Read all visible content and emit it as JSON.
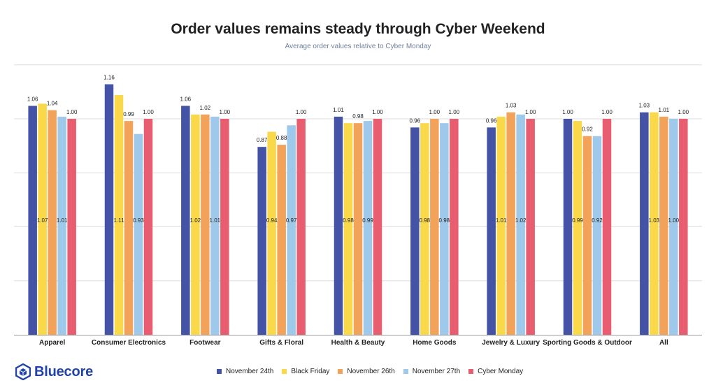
{
  "title": "Order values remains steady through Cyber Weekend",
  "subtitle": "Average order values relative to Cyber Monday",
  "brand": {
    "name": "Bluecore",
    "icon": "bluecore-hexagon-cube-icon",
    "color": "#2142a8"
  },
  "legend": [
    {
      "name": "November 24th",
      "color": "#4453a6"
    },
    {
      "name": "Black Friday",
      "color": "#f9d94a"
    },
    {
      "name": "November 26th",
      "color": "#f3a25a"
    },
    {
      "name": "November 27th",
      "color": "#9ec9eb"
    },
    {
      "name": "Cyber Monday",
      "color": "#e85d6f"
    }
  ],
  "chart_data": {
    "type": "bar",
    "title": "Order values remains steady through Cyber Weekend",
    "subtitle": "Average order values relative to Cyber Monday",
    "categories": [
      "Apparel",
      "Consumer Electronics",
      "Footwear",
      "Gifts & Floral",
      "Health & Beauty",
      "Home Goods",
      "Jewelry & Luxury",
      "Sporting Goods & Outdoor",
      "All"
    ],
    "series": [
      {
        "name": "November 24th",
        "color": "#4453a6",
        "values": [
          1.06,
          1.16,
          1.06,
          0.87,
          1.01,
          0.96,
          0.96,
          1.0,
          1.03
        ]
      },
      {
        "name": "Black Friday",
        "color": "#f9d94a",
        "values": [
          1.07,
          1.11,
          1.02,
          0.94,
          0.98,
          0.98,
          1.01,
          0.99,
          1.03
        ]
      },
      {
        "name": "November 26th",
        "color": "#f3a25a",
        "values": [
          1.04,
          0.99,
          1.02,
          0.88,
          0.98,
          1.0,
          1.03,
          0.92,
          1.01
        ]
      },
      {
        "name": "November 27th",
        "color": "#9ec9eb",
        "values": [
          1.01,
          0.93,
          1.01,
          0.97,
          0.99,
          0.98,
          1.02,
          0.92,
          1.0
        ]
      },
      {
        "name": "Cyber Monday",
        "color": "#e85d6f",
        "values": [
          1.0,
          1.0,
          1.0,
          1.0,
          1.0,
          1.0,
          1.0,
          1.0,
          1.0
        ]
      }
    ],
    "ylim": [
      0,
      1.25
    ],
    "grid": true,
    "legend_position": "bottom"
  }
}
